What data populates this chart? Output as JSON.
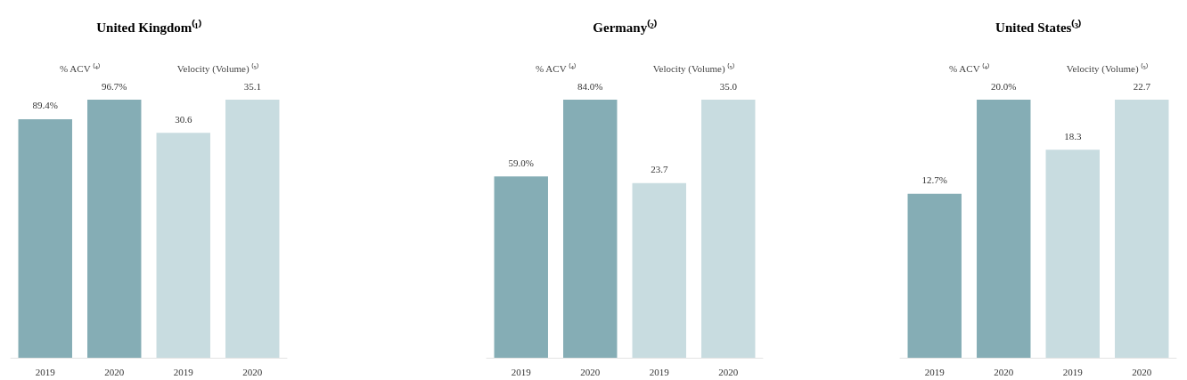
{
  "chart_data": [
    {
      "type": "bar",
      "title": "United Kingdom⁽¹⁾",
      "categories": [
        "2019",
        "2020",
        "2019",
        "2020"
      ],
      "series": [
        {
          "name": "% ACV ⁽⁴⁾",
          "color": "#85adb5",
          "values": [
            89.4,
            96.7,
            null,
            null
          ],
          "value_labels": [
            "89.4%",
            "96.7%",
            null,
            null
          ]
        },
        {
          "name": "Velocity (Volume) ⁽⁵⁾",
          "color": "#c8dce0",
          "axis": "y2",
          "values": [
            null,
            null,
            30.6,
            35.1
          ],
          "value_labels": [
            null,
            null,
            "30.6",
            "35.1"
          ]
        }
      ]
    },
    {
      "type": "bar",
      "title": "Germany⁽²⁾",
      "categories": [
        "2019",
        "2020",
        "2019",
        "2020"
      ],
      "series": [
        {
          "name": "% ACV ⁽⁴⁾",
          "color": "#85adb5",
          "values": [
            59.0,
            84.0,
            null,
            null
          ],
          "value_labels": [
            "59.0%",
            "84.0%",
            null,
            null
          ]
        },
        {
          "name": "Velocity (Volume) ⁽⁵⁾",
          "color": "#c8dce0",
          "axis": "y2",
          "values": [
            null,
            null,
            23.7,
            35.0
          ],
          "value_labels": [
            null,
            null,
            "23.7",
            "35.0"
          ]
        }
      ]
    },
    {
      "type": "bar",
      "title": "United States⁽³⁾",
      "categories": [
        "2019",
        "2020",
        "2019",
        "2020"
      ],
      "series": [
        {
          "name": "% ACV ⁽⁴⁾",
          "color": "#85adb5",
          "values": [
            12.7,
            20.0,
            null,
            null
          ],
          "value_labels": [
            "12.7%",
            "20.0%",
            null,
            null
          ]
        },
        {
          "name": "Velocity (Volume) ⁽⁵⁾",
          "color": "#c8dce0",
          "axis": "y2",
          "values": [
            null,
            null,
            18.3,
            22.7
          ],
          "value_labels": [
            null,
            null,
            "18.3",
            "22.7"
          ]
        }
      ]
    }
  ]
}
